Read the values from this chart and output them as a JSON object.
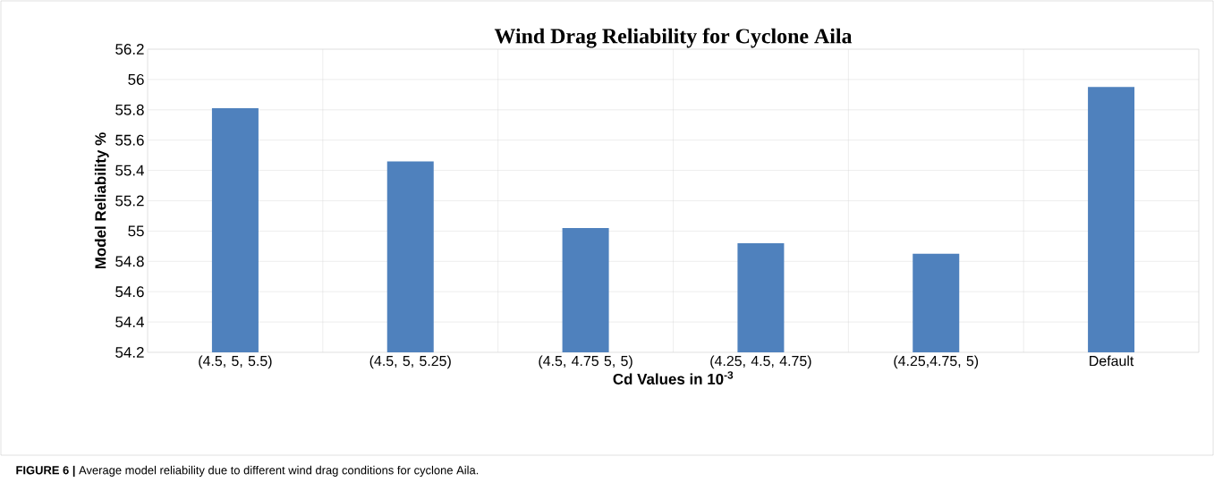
{
  "chart_data": {
    "type": "bar",
    "title": "Wind Drag Reliability for Cyclone Aila",
    "xlabel": "Cd Values in 10$^{-3}$",
    "ylabel": "Model  Reliability %",
    "categories": [
      "(4.5, 5, 5.5)",
      "(4.5, 5, 5.25)",
      "(4.5, 4.75 5, 5)",
      "(4.25, 4.5, 4.75)",
      "(4.25,4.75, 5)",
      "Default"
    ],
    "values": [
      55.81,
      55.46,
      55.02,
      54.92,
      54.85,
      55.95
    ],
    "color": "#4f81bd",
    "ylim": [
      54.2,
      56.2
    ],
    "yticks": [
      {
        "value": 54.2,
        "label": "54.2"
      },
      {
        "value": 54.4,
        "label": "54.4"
      },
      {
        "value": 54.6,
        "label": "54.6"
      },
      {
        "value": 54.8,
        "label": "54.8"
      },
      {
        "value": 55,
        "label": "55"
      },
      {
        "value": 55.2,
        "label": "55.2"
      },
      {
        "value": 55.4,
        "label": "55.4"
      },
      {
        "value": 55.6,
        "label": "55.6"
      },
      {
        "value": 55.8,
        "label": "55.8"
      },
      {
        "value": 56,
        "label": "56"
      },
      {
        "value": 56.2,
        "label": "56.2"
      }
    ],
    "grid": true,
    "annotations": [
      "**FIGURE 6 |** Average model reliability due to different wind drag conditions for cyclone Aila."
    ]
  }
}
